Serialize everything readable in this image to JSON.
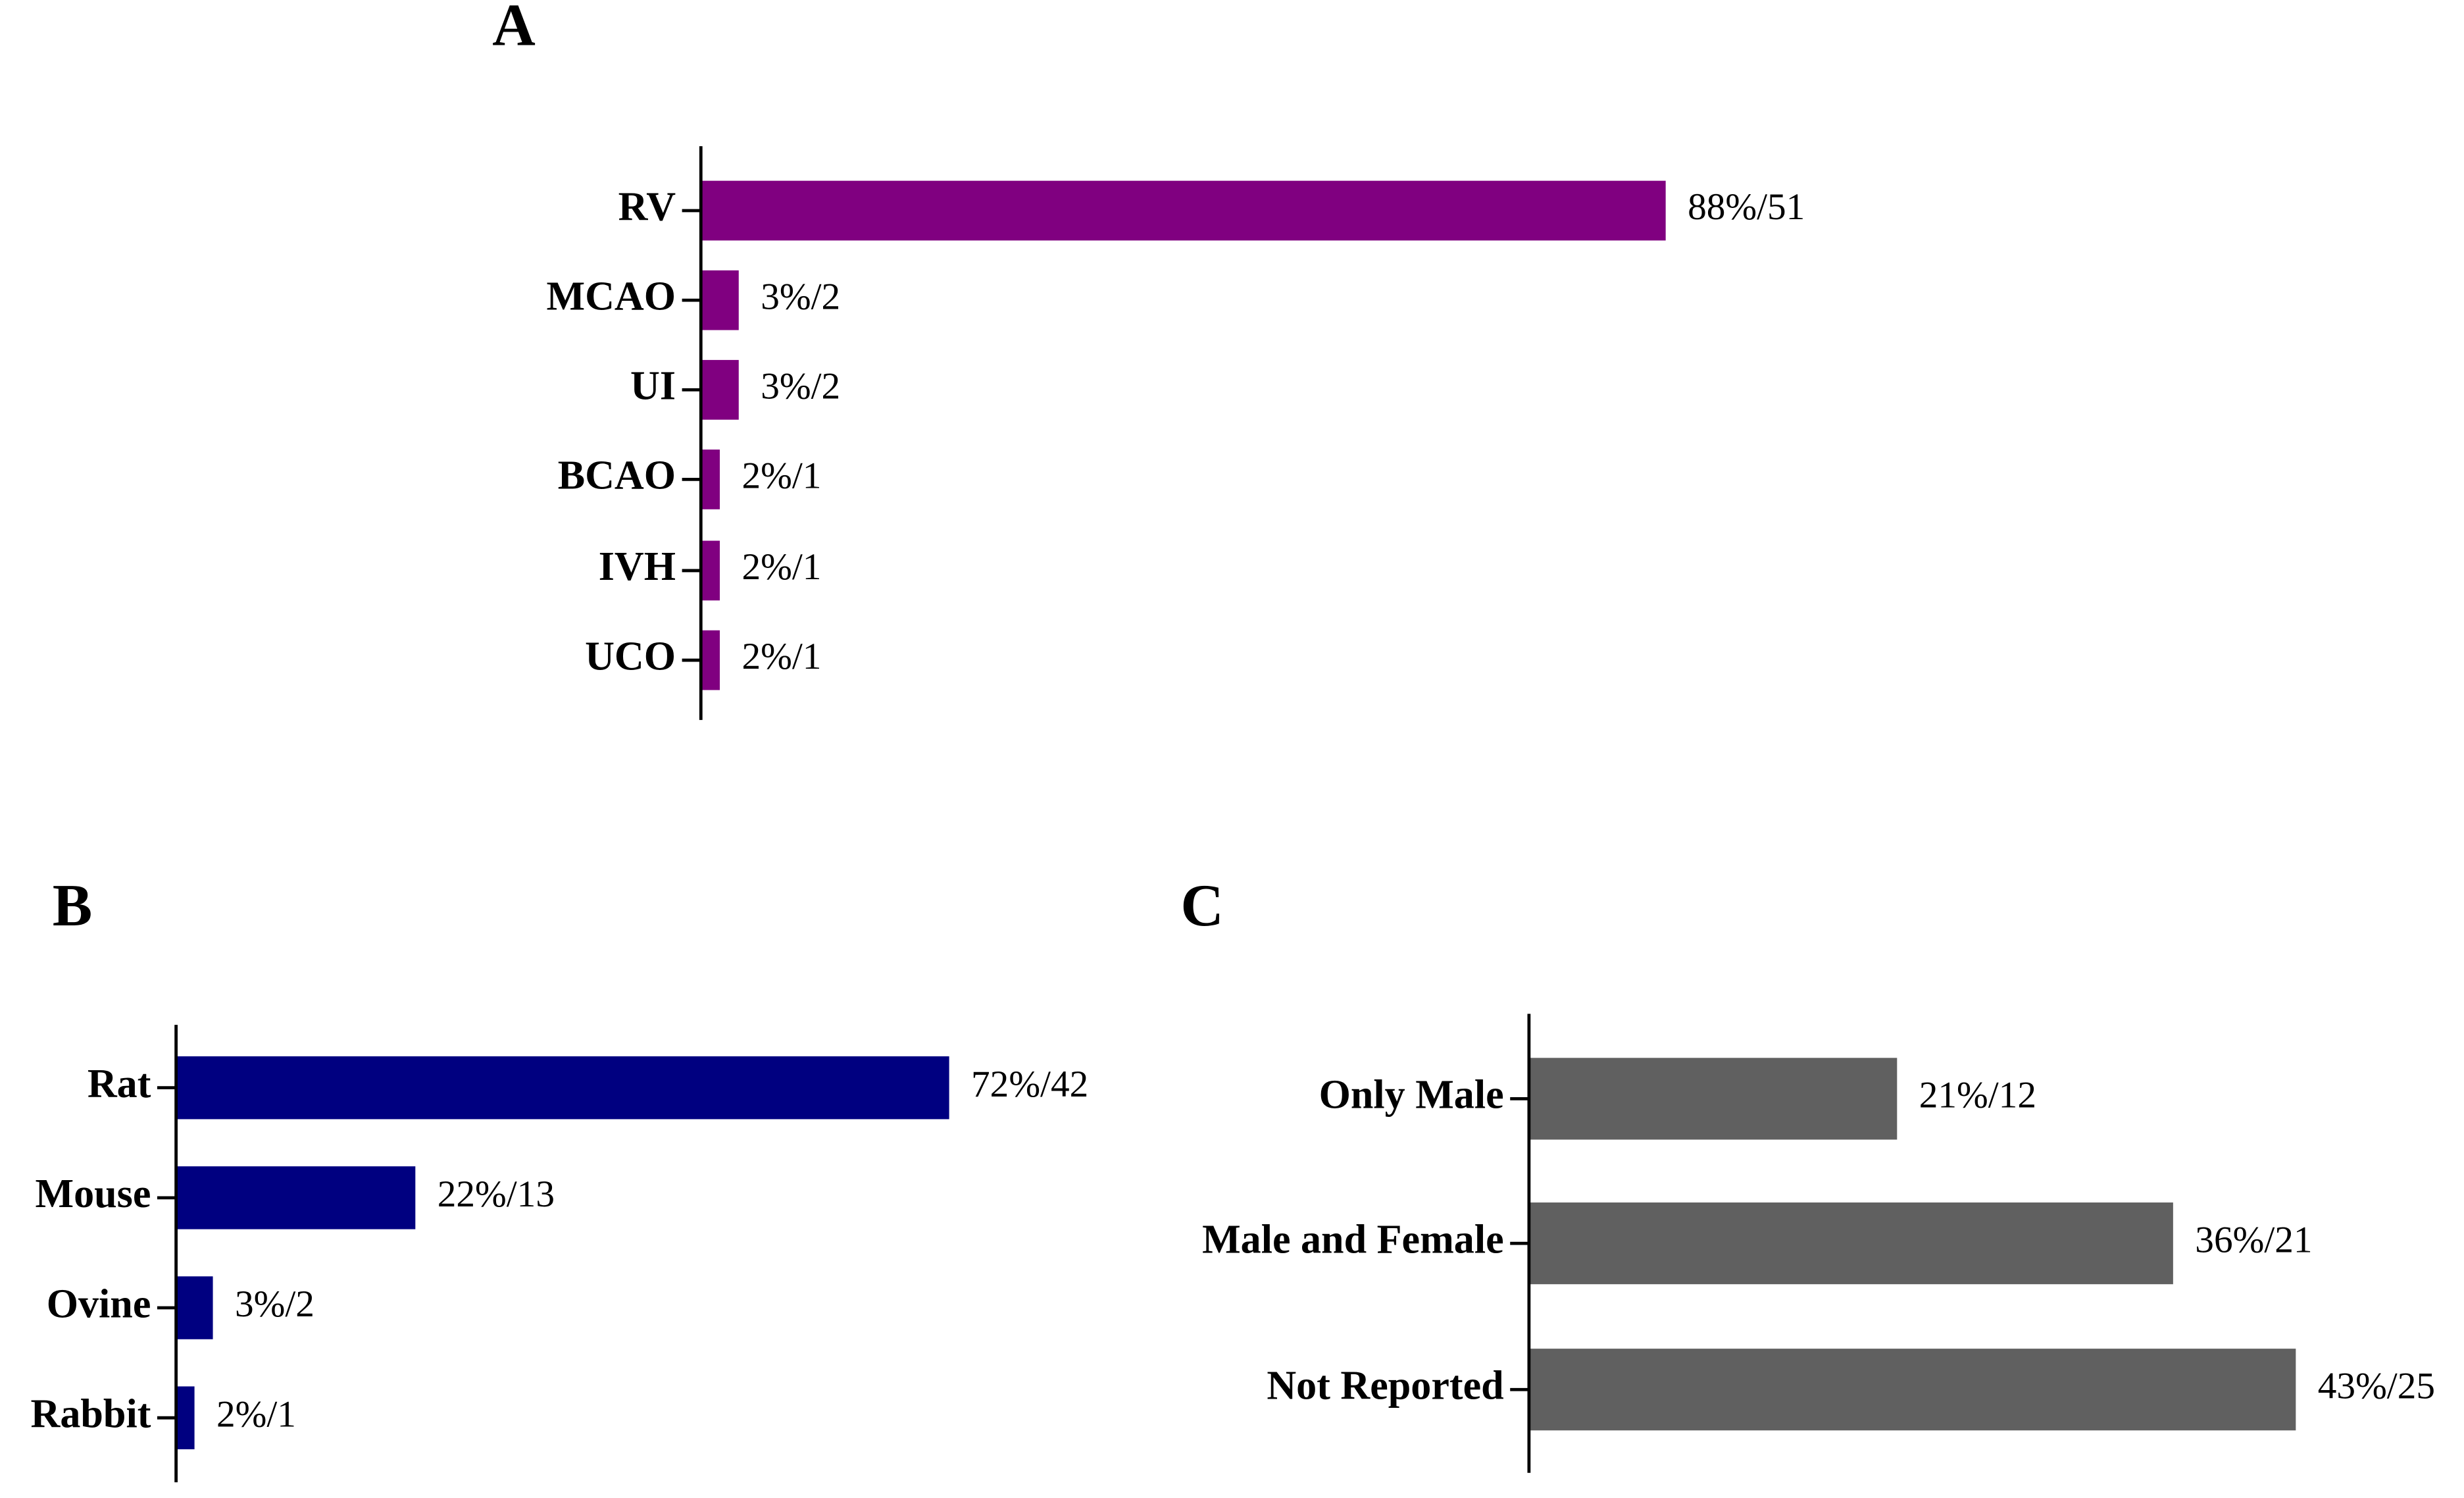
{
  "chart_data": [
    {
      "type": "bar",
      "orientation": "horizontal",
      "title": "A",
      "color": "#800080",
      "categories": [
        "RV",
        "MCAO",
        "UI",
        "BCAO",
        "IVH",
        "UCO"
      ],
      "values": [
        51,
        2,
        2,
        1,
        1,
        1
      ],
      "value_labels": [
        "88%/51",
        "3%/2",
        "3%/2",
        "2%/1",
        "2%/1",
        "2%/1"
      ]
    },
    {
      "type": "bar",
      "orientation": "horizontal",
      "title": "B",
      "color": "#000080",
      "categories": [
        "Rat",
        "Mouse",
        "Ovine",
        "Rabbit"
      ],
      "values": [
        42,
        13,
        2,
        1
      ],
      "value_labels": [
        "72%/42",
        "22%/13",
        "3%/2",
        "2%/1"
      ]
    },
    {
      "type": "bar",
      "orientation": "horizontal",
      "title": "C",
      "color": "#606060",
      "categories": [
        "Only Male",
        "Male and Female",
        "Not Reported"
      ],
      "values": [
        12,
        21,
        25
      ],
      "value_labels": [
        "21%/12",
        "36%/21",
        "43%/25"
      ]
    }
  ]
}
